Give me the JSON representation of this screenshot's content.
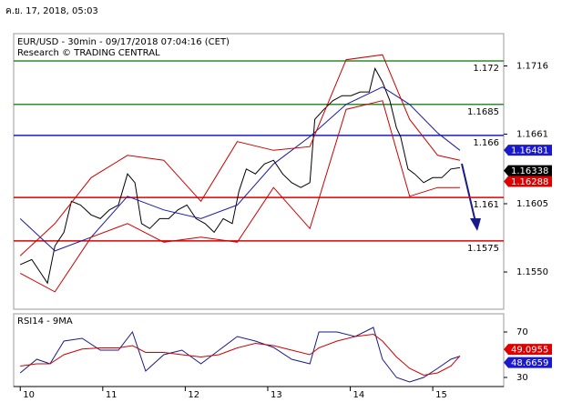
{
  "header": "ค.ย. 17, 2018, 05:03",
  "chart_data": [
    {
      "type": "line",
      "title": "EUR/USD - 30min - 09/17/2018 07:04:16 (CET)",
      "subtitle": "Research © TRADING CENTRAL",
      "xlim": [
        9.92,
        15.86
      ],
      "ylim": [
        1.152,
        1.1742
      ],
      "yticks": [
        1.1716,
        1.1661,
        1.1605,
        {
          "value": 1.155,
          "label": "1.1550"
        }
      ],
      "series": [
        {
          "color": "#000000",
          "x": [
            10.0,
            10.14,
            10.25,
            10.33,
            10.42,
            10.53,
            10.62,
            10.73,
            10.86,
            10.97,
            11.08,
            11.19,
            11.3,
            11.39,
            11.47,
            11.57,
            11.69,
            11.8,
            11.91,
            12.02,
            12.13,
            12.24,
            12.35,
            12.46,
            12.57,
            12.65,
            12.74,
            12.85,
            12.96,
            13.07,
            13.18,
            13.29,
            13.4,
            13.51,
            13.57,
            13.68,
            13.79,
            13.9,
            14.01,
            14.12,
            14.23,
            14.3,
            14.39,
            14.48,
            14.56,
            14.61,
            14.7,
            14.78,
            14.89,
            15.0,
            15.11,
            15.22,
            15.33
          ],
          "values": [
            1.1556,
            1.156,
            1.1549,
            1.1541,
            1.1571,
            1.1582,
            1.1607,
            1.1604,
            1.1596,
            1.1593,
            1.16,
            1.1604,
            1.1629,
            1.1622,
            1.1589,
            1.1585,
            1.1593,
            1.1593,
            1.16,
            1.1604,
            1.1593,
            1.1589,
            1.1582,
            1.1593,
            1.1589,
            1.1615,
            1.1633,
            1.1629,
            1.1637,
            1.164,
            1.1629,
            1.1622,
            1.1618,
            1.1622,
            1.1673,
            1.1681,
            1.1688,
            1.1692,
            1.1692,
            1.1695,
            1.1695,
            1.1714,
            1.1703,
            1.1688,
            1.1666,
            1.1659,
            1.1633,
            1.1629,
            1.1622,
            1.1626,
            1.1626,
            1.1633,
            1.1634
          ]
        },
        {
          "color": "#1a1aa8",
          "x": [
            10.0,
            10.42,
            10.86,
            11.3,
            11.74,
            12.19,
            12.63,
            13.07,
            13.51,
            13.95,
            14.39,
            14.72,
            15.06,
            15.33
          ],
          "values": [
            1.1593,
            1.1567,
            1.1578,
            1.1611,
            1.16,
            1.1593,
            1.1604,
            1.1637,
            1.1659,
            1.1685,
            1.1699,
            1.1685,
            1.1662,
            1.1648
          ]
        },
        {
          "color": "#cc0000",
          "x": [
            10.0,
            10.42,
            10.86,
            11.3,
            11.74,
            12.19,
            12.63,
            13.07,
            13.51,
            13.95,
            14.39,
            14.72,
            15.06,
            15.33
          ],
          "values": [
            1.1563,
            1.1589,
            1.1626,
            1.1644,
            1.164,
            1.1607,
            1.1655,
            1.1648,
            1.1651,
            1.1721,
            1.1725,
            1.1673,
            1.1644,
            1.164
          ]
        },
        {
          "color": "#cc0000",
          "x": [
            10.0,
            10.42,
            10.86,
            11.3,
            11.74,
            12.19,
            12.63,
            13.07,
            13.51,
            13.95,
            14.39,
            14.72,
            15.06,
            15.33
          ],
          "values": [
            1.1549,
            1.1534,
            1.1578,
            1.1589,
            1.1574,
            1.1578,
            1.1574,
            1.1618,
            1.1585,
            1.1681,
            1.1688,
            1.1611,
            1.1618,
            1.1618
          ]
        }
      ],
      "levels": [
        {
          "value": 1.172,
          "color": "#2e8b2e"
        },
        {
          "value": 1.1685,
          "color": "#2e8b2e"
        },
        {
          "value": 1.166,
          "color": "#1a1acc"
        },
        {
          "value": 1.161,
          "color": "#dd0000"
        },
        {
          "value": 1.1575,
          "color": "#dd0000"
        }
      ],
      "price_tags": [
        {
          "value": 1.16481,
          "color": "#1a1acc"
        },
        {
          "value": 1.16338,
          "color": "#000000"
        },
        {
          "value": 1.16288,
          "color": "#dd0000"
        }
      ]
    },
    {
      "type": "line",
      "title": "RSI14 - 9MA",
      "xlim": [
        9.92,
        15.86
      ],
      "ylim": [
        22,
        86
      ],
      "xticks": [
        10,
        11,
        12,
        13,
        14,
        15
      ],
      "yticks": [
        70,
        30
      ],
      "series": [
        {
          "color": "#1a1a8a",
          "x": [
            10.0,
            10.2,
            10.36,
            10.53,
            10.75,
            10.97,
            11.19,
            11.36,
            11.52,
            11.74,
            11.96,
            12.19,
            12.41,
            12.63,
            12.85,
            13.07,
            13.29,
            13.51,
            13.62,
            13.84,
            14.06,
            14.28,
            14.39,
            14.56,
            14.72,
            14.89,
            15.06,
            15.22,
            15.33
          ],
          "values": [
            34,
            46,
            42,
            62,
            64.4,
            54,
            54,
            70,
            35.6,
            50,
            54,
            42,
            54,
            66,
            62,
            56.4,
            46,
            42,
            70,
            70,
            66,
            74,
            46,
            30,
            26,
            30,
            38,
            46,
            48.7
          ]
        },
        {
          "color": "#cc0000",
          "x": [
            10.0,
            10.2,
            10.36,
            10.53,
            10.75,
            10.97,
            11.19,
            11.36,
            11.52,
            11.74,
            11.96,
            12.19,
            12.41,
            12.63,
            12.85,
            13.07,
            13.29,
            13.51,
            13.62,
            13.84,
            14.06,
            14.28,
            14.39,
            14.56,
            14.72,
            14.89,
            15.06,
            15.22,
            15.33
          ],
          "values": [
            40,
            42,
            42,
            50,
            55,
            56,
            56,
            58,
            52,
            52,
            50,
            48,
            50,
            56,
            60,
            58,
            54,
            50,
            56,
            62,
            66,
            68,
            62,
            48,
            38,
            32,
            34,
            40,
            49
          ]
        }
      ],
      "price_tags": [
        {
          "value": 49.0955,
          "color": "#dd0000"
        },
        {
          "value": 48.6659,
          "color": "#1a1acc"
        }
      ]
    }
  ]
}
